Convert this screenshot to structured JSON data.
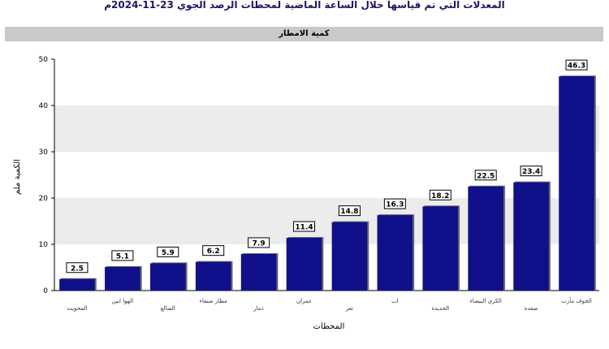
{
  "chart_data": {
    "type": "bar",
    "title": "المعدلات التي تم قياسها خلال الساعة الماضية لمحطات الرصد الجوي 23-11-2024م",
    "subtitle": "كمية الامطار",
    "xlabel": "المحطات",
    "ylabel": "الكمية ملم",
    "ylim": [
      0,
      50
    ],
    "yticks": [
      0,
      10,
      20,
      30,
      40,
      50
    ],
    "grid": "horizontal bands",
    "categories": [
      "المحويت",
      "الهوا ابين",
      "الضالع",
      "مطار صنعاء",
      "ذمار",
      "عمران",
      "تعز",
      "اب",
      "الحديدة",
      "الكرى البيضاء",
      "صعدة",
      "الجوف مأرب"
    ],
    "values": [
      2.5,
      5.1,
      5.9,
      6.2,
      7.9,
      11.4,
      14.8,
      16.3,
      18.2,
      22.5,
      23.4,
      46.3
    ],
    "bar_color": "#10108a",
    "band_color": "#ececec"
  }
}
